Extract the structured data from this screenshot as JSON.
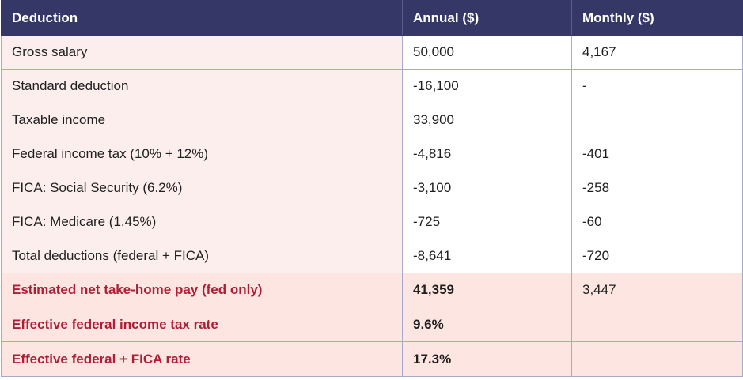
{
  "table": {
    "headers": [
      "Deduction",
      "Annual ($)",
      "Monthly ($)"
    ],
    "rows": [
      {
        "label": "Gross salary",
        "annual": "50,000",
        "monthly": "4,167"
      },
      {
        "label": "Standard deduction",
        "annual": "-16,100",
        "monthly": "-"
      },
      {
        "label": "Taxable income",
        "annual": "33,900",
        "monthly": ""
      },
      {
        "label": "Federal income tax (10% + 12%)",
        "annual": "-4,816",
        "monthly": "-401"
      },
      {
        "label": "FICA: Social Security (6.2%)",
        "annual": "-3,100",
        "monthly": "-258"
      },
      {
        "label": "FICA: Medicare (1.45%)",
        "annual": "-725",
        "monthly": "-60"
      },
      {
        "label": "Total deductions (federal + FICA)",
        "annual": "-8,641",
        "monthly": "-720"
      },
      {
        "label": "Estimated net take-home pay (fed only)",
        "annual": "41,359",
        "monthly": "3,447"
      },
      {
        "label": "Effective federal income tax rate",
        "annual": "9.6%",
        "monthly": ""
      },
      {
        "label": "Effective federal + FICA rate",
        "annual": "17.3%",
        "monthly": ""
      }
    ]
  },
  "colors": {
    "header_bg": "#353866",
    "label_bg": "#fdeeee",
    "highlight_bg": "#fde6e2",
    "highlight_text": "#b01e35",
    "border": "#a8a9cf"
  }
}
